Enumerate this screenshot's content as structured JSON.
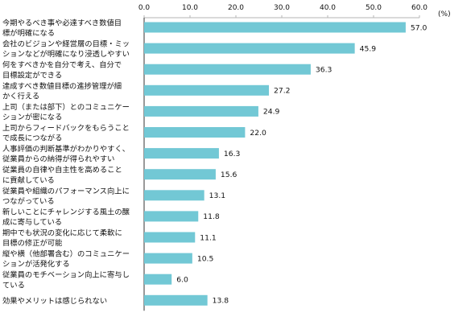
{
  "chart_data": {
    "type": "bar",
    "orientation": "horizontal",
    "unit": "(%)",
    "xlim": [
      0,
      60
    ],
    "ticks": [
      "0.0",
      "10.0",
      "20.0",
      "30.0",
      "40.0",
      "50.0",
      "60.0"
    ],
    "tick_values": [
      0,
      10,
      20,
      30,
      40,
      50,
      60
    ],
    "categories": [
      [
        "今期やるべき事や必達すべき数値目",
        "標が明確になる"
      ],
      [
        "会社のビジョンや経営層の目標・ミッ",
        "ションなどが明確になり浸透しやすい"
      ],
      [
        "何をすべきかを自分で考え、自分で",
        "目標設定ができる"
      ],
      [
        "達成すべき数値目標の進捗管理が細",
        "かく行える"
      ],
      [
        "上司（または部下）とのコミュニケー",
        "ションが密になる"
      ],
      [
        "上司からフィードバックをもらうこと",
        "で成長につながる"
      ],
      [
        "人事評価の判断基準がわかりやすく、",
        "従業員からの納得が得られやすい"
      ],
      [
        "従業員の自律や自主性を高めること",
        "に貢献している"
      ],
      [
        "従業員や組織のパフォーマンス向上に",
        "つながっている"
      ],
      [
        "新しいことにチャレンジする風土の醸",
        "成に寄与している"
      ],
      [
        "期中でも状況の変化に応じて柔軟に",
        "目標の修正が可能"
      ],
      [
        "縦や横（他部署含む）のコミュニケー",
        "ションが活発化する"
      ],
      [
        "従業員のモチベーション向上に寄与し",
        "ている"
      ],
      [
        "効果やメリットは感じられない"
      ]
    ],
    "values": [
      57.0,
      45.9,
      36.3,
      27.2,
      24.9,
      22.0,
      16.3,
      15.6,
      13.1,
      11.8,
      11.1,
      10.5,
      6.0,
      13.8
    ],
    "value_labels": [
      "57.0",
      "45.9",
      "36.3",
      "27.2",
      "24.9",
      "22.0",
      "16.3",
      "15.6",
      "13.1",
      "11.8",
      "11.1",
      "10.5",
      "6.0",
      "13.8"
    ],
    "bar_color": "#72C8D5",
    "grid": false,
    "legend": "none",
    "title": "",
    "xlabel": "",
    "ylabel": ""
  }
}
